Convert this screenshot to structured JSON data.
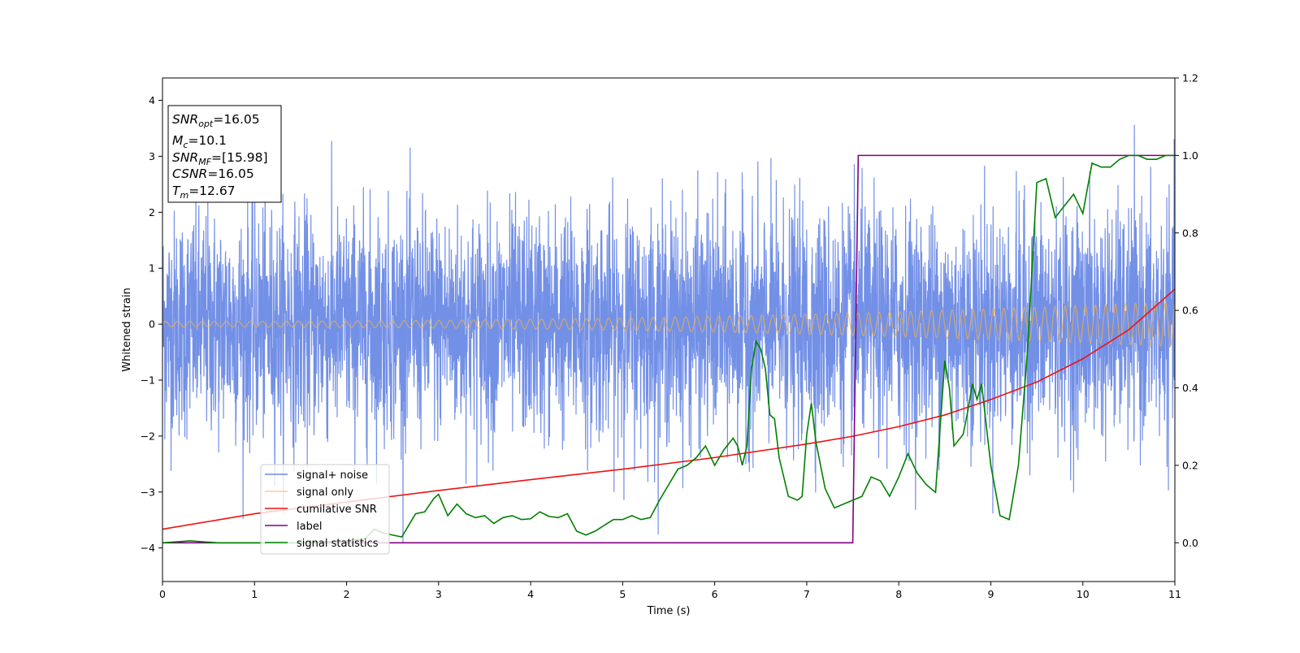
{
  "chart_data": {
    "type": "line",
    "xlabel": "Time (s)",
    "ylabel": "Whitened strain",
    "xlim": [
      0,
      11
    ],
    "ylim": [
      -4.6,
      4.4
    ],
    "y2lim": [
      -0.1,
      1.2
    ],
    "x_ticks": [
      0,
      1,
      2,
      3,
      4,
      5,
      6,
      7,
      8,
      9,
      10,
      11
    ],
    "y_ticks": [
      -4,
      -3,
      -2,
      -1,
      0,
      1,
      2,
      3,
      4
    ],
    "y2_ticks": [
      0.0,
      0.2,
      0.4,
      0.6,
      0.8,
      1.0,
      1.2
    ],
    "grid": false,
    "legend_position": "lower-left",
    "colors": {
      "noise": "#6b8ae6",
      "signal": "#f5b041",
      "csnr": "#ee1111",
      "label": "#800080",
      "stat": "#008000"
    },
    "annotation": {
      "snr_opt": {
        "sym": "SNR",
        "sub": "opt",
        "val": "=16.05"
      },
      "mc": {
        "sym": "M",
        "sub": "c",
        "val": "=10.1"
      },
      "snr_mf": {
        "sym": "SNR",
        "sub": "MF",
        "val": "=[15.98]"
      },
      "csnr": {
        "sym": "CSNR",
        "val": "=16.05"
      },
      "tm": {
        "sym": "T",
        "sub": "m",
        "val": "=12.67"
      }
    },
    "series": [
      {
        "name": "signal+ noise",
        "axis": "left",
        "description_values": "approximately gaussian whitened noise with unit variance, peaks to about +4 and -3.9",
        "noise_std": 1.0
      },
      {
        "name": "signal only",
        "axis": "left",
        "waveform": "chirp",
        "amplitude_start": 0.05,
        "amplitude_end": 0.4
      },
      {
        "name": "cumilative SNR",
        "axis": "right",
        "x": [
          0,
          1,
          2,
          3,
          4,
          5,
          6,
          7,
          7.5,
          8,
          8.5,
          9,
          9.5,
          10,
          10.5,
          11
        ],
        "y": [
          0.035,
          0.075,
          0.105,
          0.135,
          0.163,
          0.19,
          0.22,
          0.255,
          0.275,
          0.3,
          0.33,
          0.37,
          0.415,
          0.475,
          0.55,
          0.655
        ]
      },
      {
        "name": "label",
        "axis": "right",
        "x": [
          0,
          7.5,
          7.56,
          11
        ],
        "y": [
          0.0,
          0.0,
          1.0,
          1.0
        ]
      },
      {
        "name": "signal statistics",
        "axis": "right",
        "x": [
          0,
          0.3,
          0.6,
          1,
          1.5,
          2,
          2.2,
          2.3,
          2.4,
          2.6,
          2.75,
          2.85,
          2.95,
          3.0,
          3.1,
          3.2,
          3.3,
          3.4,
          3.5,
          3.6,
          3.7,
          3.8,
          3.9,
          4.0,
          4.1,
          4.2,
          4.3,
          4.4,
          4.5,
          4.6,
          4.7,
          4.8,
          4.9,
          5.0,
          5.1,
          5.2,
          5.3,
          5.4,
          5.5,
          5.6,
          5.7,
          5.8,
          5.9,
          6.0,
          6.05,
          6.1,
          6.2,
          6.25,
          6.3,
          6.35,
          6.4,
          6.45,
          6.5,
          6.55,
          6.6,
          6.65,
          6.7,
          6.8,
          6.9,
          6.95,
          7.0,
          7.05,
          7.1,
          7.2,
          7.3,
          7.4,
          7.5,
          7.6,
          7.7,
          7.8,
          7.9,
          8.0,
          8.1,
          8.2,
          8.3,
          8.4,
          8.45,
          8.5,
          8.55,
          8.6,
          8.7,
          8.75,
          8.8,
          8.85,
          8.9,
          9.0,
          9.1,
          9.2,
          9.3,
          9.4,
          9.5,
          9.6,
          9.7,
          9.8,
          9.9,
          10.0,
          10.1,
          10.2,
          10.3,
          10.4,
          10.5,
          10.6,
          10.7,
          10.8,
          10.9,
          11.0
        ],
        "y": [
          0.0,
          0.005,
          0.0,
          0.0,
          0.0,
          0.005,
          0.01,
          0.035,
          0.025,
          0.015,
          0.075,
          0.08,
          0.115,
          0.125,
          0.07,
          0.1,
          0.075,
          0.065,
          0.07,
          0.05,
          0.065,
          0.07,
          0.06,
          0.062,
          0.08,
          0.068,
          0.065,
          0.075,
          0.03,
          0.02,
          0.03,
          0.045,
          0.06,
          0.06,
          0.07,
          0.06,
          0.065,
          0.11,
          0.15,
          0.19,
          0.2,
          0.22,
          0.25,
          0.2,
          0.22,
          0.24,
          0.27,
          0.25,
          0.2,
          0.25,
          0.45,
          0.52,
          0.5,
          0.45,
          0.33,
          0.32,
          0.22,
          0.12,
          0.11,
          0.12,
          0.28,
          0.36,
          0.26,
          0.14,
          0.09,
          0.1,
          0.11,
          0.12,
          0.17,
          0.16,
          0.12,
          0.17,
          0.23,
          0.18,
          0.15,
          0.13,
          0.3,
          0.47,
          0.4,
          0.25,
          0.28,
          0.34,
          0.41,
          0.37,
          0.41,
          0.2,
          0.07,
          0.06,
          0.2,
          0.5,
          0.93,
          0.94,
          0.84,
          0.87,
          0.9,
          0.85,
          0.98,
          0.97,
          0.97,
          0.99,
          1.0,
          1.0,
          0.99,
          0.99,
          1.0,
          1.0
        ]
      }
    ]
  }
}
